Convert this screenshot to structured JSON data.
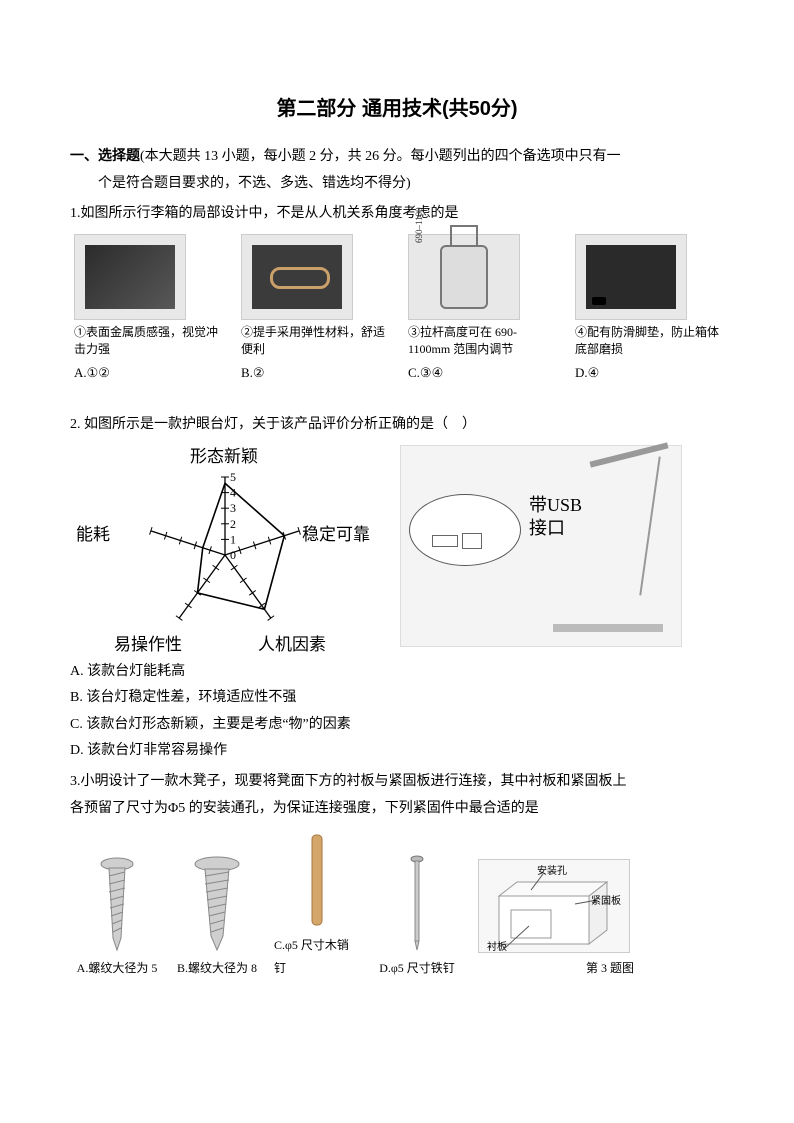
{
  "title": "第二部分  通用技术(共50分)",
  "section1": {
    "bold": "一、选择题",
    "desc": "(本大题共 13 小题，每小题 2 分，共 26 分。每小题列出的四个备选项中只有一",
    "desc2": "个是符合题目要求的，不选、多选、错选均不得分)"
  },
  "q1": {
    "stem": "1.如图所示行李箱的局部设计中，不是从人机关系角度考虑的是",
    "captions": [
      "①表面金属质感强，视觉冲击力强",
      "②提手采用弹性材料，舒适便利",
      "③拉杆高度可在 690-1100mm 范围内调节",
      "④配有防滑脚垫，防止箱体底部磨损"
    ],
    "opts": [
      "A.①②",
      "B.②",
      "C.③④",
      "D.④"
    ],
    "ruler_label": "690–1100"
  },
  "q2": {
    "stem": "2. 如图所示是一款护眼台灯，关于该产品评价分析正确的是（　）",
    "chart": {
      "type": "radar",
      "axes": [
        "形态新颖",
        "稳定可靠",
        "人机因素",
        "易操作性",
        "能耗"
      ],
      "scale": {
        "min": 0,
        "max": 5,
        "ticks": [
          0,
          1,
          2,
          3,
          4,
          5
        ]
      },
      "values": [
        4.6,
        4.0,
        4.3,
        3.0,
        1.5
      ],
      "line_color": "#000000",
      "grid_color": "#000000",
      "bg": "#ffffff",
      "font": "KaiTi",
      "font_size": 17
    },
    "usb_label": "带USB\n接口",
    "choices": [
      "A. 该款台灯能耗高",
      "B. 该台灯稳定性差，环境适应性不强",
      "C. 该款台灯形态新颖，主要是考虑“物”的因素",
      "D. 该款台灯非常容易操作"
    ]
  },
  "q3": {
    "stem1": "3.小明设计了一款木凳子，现要将凳面下方的衬板与紧固板进行连接，其中衬板和紧固板上",
    "stem2": "各预留了尺寸为Φ5 的安装通孔，为保证连接强度，下列紧固件中最合适的是",
    "opts": [
      "A.螺纹大径为 5",
      "B.螺纹大径为 8",
      "C.φ5 尺寸木销钉",
      "D.φ5 尺寸铁钉"
    ],
    "fig_labels": {
      "a": "安装孔",
      "b": "紧固板",
      "c": "衬板",
      "caption": "第 3 题图"
    }
  }
}
